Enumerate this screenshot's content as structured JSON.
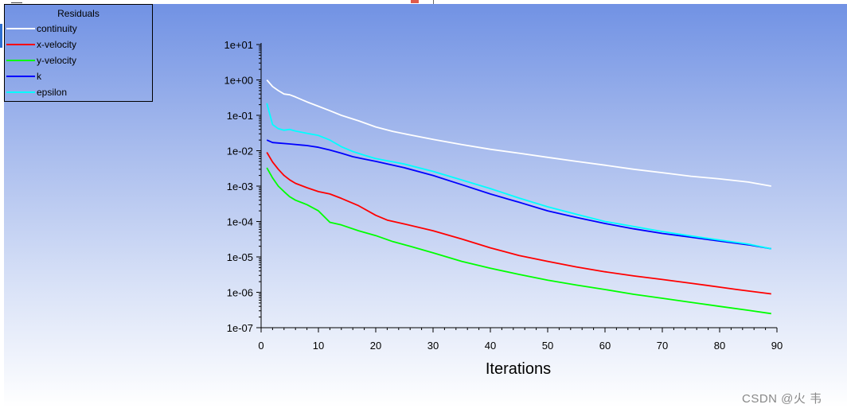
{
  "chart_data": {
    "type": "line",
    "title": "",
    "xlabel": "Iterations",
    "ylabel": "",
    "yscale": "log",
    "xlim": [
      0,
      90
    ],
    "ylim": [
      1e-07,
      10
    ],
    "x_ticks": [
      0,
      10,
      20,
      30,
      40,
      50,
      60,
      70,
      80,
      90
    ],
    "x_tick_labels": [
      "0",
      "10",
      "20",
      "30",
      "40",
      "50",
      "60",
      "70",
      "80",
      "90"
    ],
    "y_ticks": [
      1e-07,
      1e-06,
      1e-05,
      0.0001,
      0.001,
      0.01,
      0.1,
      1,
      10
    ],
    "y_tick_labels": [
      "1e-07",
      "1e-06",
      "1e-05",
      "1e-04",
      "1e-03",
      "1e-02",
      "1e-01",
      "1e+00",
      "1e+01"
    ],
    "legend_position": "top-left",
    "series": [
      {
        "name": "continuity",
        "color": "#ffffff",
        "points": [
          [
            1,
            1.0
          ],
          [
            2,
            0.65
          ],
          [
            3,
            0.5
          ],
          [
            4,
            0.4
          ],
          [
            5,
            0.38
          ],
          [
            6,
            0.33
          ],
          [
            8,
            0.24
          ],
          [
            10,
            0.18
          ],
          [
            12,
            0.135
          ],
          [
            14,
            0.1
          ],
          [
            17,
            0.07
          ],
          [
            20,
            0.047
          ],
          [
            23,
            0.035
          ],
          [
            26,
            0.028
          ],
          [
            30,
            0.021
          ],
          [
            35,
            0.015
          ],
          [
            40,
            0.011
          ],
          [
            45,
            0.0085
          ],
          [
            50,
            0.0065
          ],
          [
            55,
            0.005
          ],
          [
            60,
            0.0039
          ],
          [
            65,
            0.003
          ],
          [
            70,
            0.0024
          ],
          [
            75,
            0.0019
          ],
          [
            80,
            0.0016
          ],
          [
            85,
            0.0013
          ],
          [
            89,
            0.001
          ]
        ]
      },
      {
        "name": "x-velocity",
        "color": "#ff0000",
        "points": [
          [
            1,
            0.009
          ],
          [
            2,
            0.0048
          ],
          [
            3,
            0.003
          ],
          [
            4,
            0.002
          ],
          [
            5,
            0.0015
          ],
          [
            6,
            0.0012
          ],
          [
            8,
            0.0009
          ],
          [
            10,
            0.0007
          ],
          [
            12,
            0.0006
          ],
          [
            14,
            0.00045
          ],
          [
            17,
            0.00028
          ],
          [
            20,
            0.00015
          ],
          [
            22,
            0.00011
          ],
          [
            25,
            8.5e-05
          ],
          [
            30,
            5.5e-05
          ],
          [
            35,
            3.2e-05
          ],
          [
            40,
            1.8e-05
          ],
          [
            45,
            1.1e-05
          ],
          [
            50,
            7.5e-06
          ],
          [
            55,
            5.2e-06
          ],
          [
            60,
            3.8e-06
          ],
          [
            65,
            2.9e-06
          ],
          [
            70,
            2.3e-06
          ],
          [
            75,
            1.8e-06
          ],
          [
            80,
            1.4e-06
          ],
          [
            83,
            1.2e-06
          ],
          [
            89,
            9e-07
          ]
        ]
      },
      {
        "name": "y-velocity",
        "color": "#00ff00",
        "points": [
          [
            1,
            0.0033
          ],
          [
            2,
            0.0017
          ],
          [
            3,
            0.001
          ],
          [
            4,
            0.0007
          ],
          [
            5,
            0.0005
          ],
          [
            6,
            0.0004
          ],
          [
            8,
            0.0003
          ],
          [
            10,
            0.0002
          ],
          [
            12,
            9.5e-05
          ],
          [
            14,
            8e-05
          ],
          [
            17,
            5.5e-05
          ],
          [
            20,
            4e-05
          ],
          [
            23,
            2.7e-05
          ],
          [
            26,
            2e-05
          ],
          [
            30,
            1.3e-05
          ],
          [
            35,
            7.5e-06
          ],
          [
            40,
            4.8e-06
          ],
          [
            45,
            3.2e-06
          ],
          [
            50,
            2.2e-06
          ],
          [
            55,
            1.6e-06
          ],
          [
            60,
            1.2e-06
          ],
          [
            65,
            8.8e-07
          ],
          [
            70,
            6.8e-07
          ],
          [
            75,
            5.2e-07
          ],
          [
            80,
            4e-07
          ],
          [
            85,
            3.1e-07
          ],
          [
            89,
            2.5e-07
          ]
        ]
      },
      {
        "name": "k",
        "color": "#0000ff",
        "points": [
          [
            1,
            0.02
          ],
          [
            2,
            0.017
          ],
          [
            3,
            0.0165
          ],
          [
            5,
            0.0155
          ],
          [
            8,
            0.014
          ],
          [
            10,
            0.0125
          ],
          [
            12,
            0.0105
          ],
          [
            14,
            0.0085
          ],
          [
            16,
            0.0068
          ],
          [
            18,
            0.0058
          ],
          [
            20,
            0.005
          ],
          [
            25,
            0.0033
          ],
          [
            30,
            0.002
          ],
          [
            35,
            0.0011
          ],
          [
            40,
            0.0006
          ],
          [
            45,
            0.00035
          ],
          [
            50,
            0.0002
          ],
          [
            55,
            0.00013
          ],
          [
            60,
            8.8e-05
          ],
          [
            65,
            6.2e-05
          ],
          [
            70,
            4.6e-05
          ],
          [
            75,
            3.6e-05
          ],
          [
            80,
            2.8e-05
          ],
          [
            85,
            2.2e-05
          ],
          [
            89,
            1.7e-05
          ]
        ]
      },
      {
        "name": "epsilon",
        "color": "#00ffff",
        "points": [
          [
            1,
            0.22
          ],
          [
            2,
            0.055
          ],
          [
            3,
            0.042
          ],
          [
            4,
            0.038
          ],
          [
            5,
            0.04
          ],
          [
            6,
            0.036
          ],
          [
            8,
            0.031
          ],
          [
            10,
            0.027
          ],
          [
            12,
            0.02
          ],
          [
            14,
            0.013
          ],
          [
            16,
            0.0095
          ],
          [
            18,
            0.0075
          ],
          [
            20,
            0.006
          ],
          [
            25,
            0.0042
          ],
          [
            30,
            0.0026
          ],
          [
            35,
            0.0015
          ],
          [
            40,
            0.00085
          ],
          [
            45,
            0.00046
          ],
          [
            50,
            0.00026
          ],
          [
            55,
            0.00016
          ],
          [
            60,
            0.0001
          ],
          [
            65,
            7.2e-05
          ],
          [
            70,
            5.2e-05
          ],
          [
            75,
            3.9e-05
          ],
          [
            80,
            3e-05
          ],
          [
            85,
            2.3e-05
          ],
          [
            89,
            1.7e-05
          ]
        ]
      }
    ]
  },
  "legend": {
    "title": "Residuals"
  },
  "watermark": "CSDN @火 韦"
}
